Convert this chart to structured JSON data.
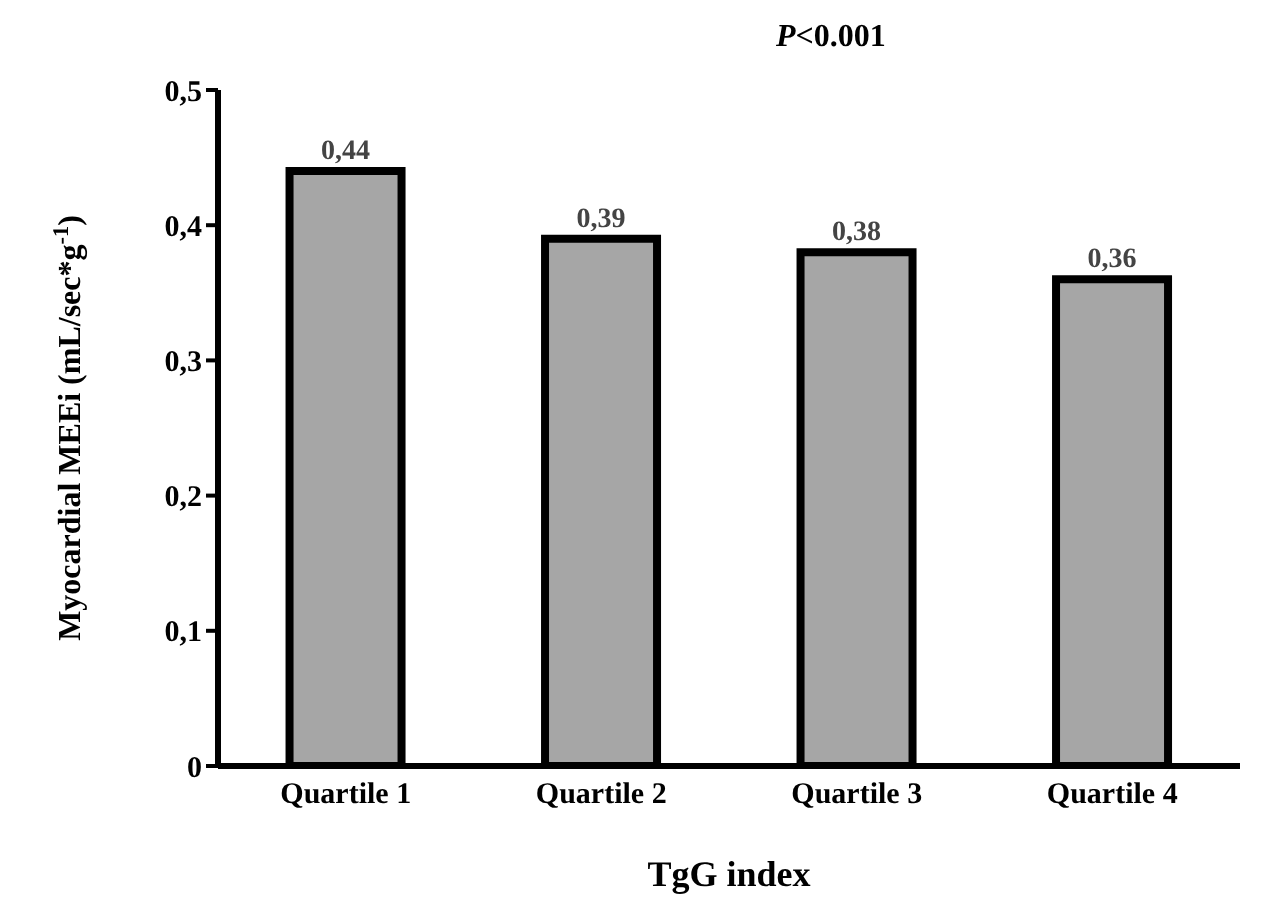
{
  "chart_data": {
    "type": "bar",
    "xlabel": "TgG index",
    "ylabel": "Myocardial MEEi (mL/sec*g$^{-1}$)",
    "annotations": [
      "P<0.001"
    ],
    "categories": [
      "Quartile 1",
      "Quartile 2",
      "Quartile 3",
      "Quartile 4"
    ],
    "values": [
      0.44,
      0.39,
      0.38,
      0.36
    ],
    "value_labels": [
      "0,44",
      "0,39",
      "0,38",
      "0,36"
    ],
    "color": "#a6a6a6",
    "ylim": [
      0,
      0.5
    ],
    "yticks": [
      0,
      {
        "value": 0.1,
        "label": "0,1"
      },
      {
        "value": 0.2,
        "label": "0,2"
      },
      {
        "value": 0.3,
        "label": "0,3"
      },
      {
        "value": 0.4,
        "label": "0,4"
      },
      {
        "value": 0.5,
        "label": "0,5"
      }
    ],
    "grid": false,
    "legend": false
  }
}
